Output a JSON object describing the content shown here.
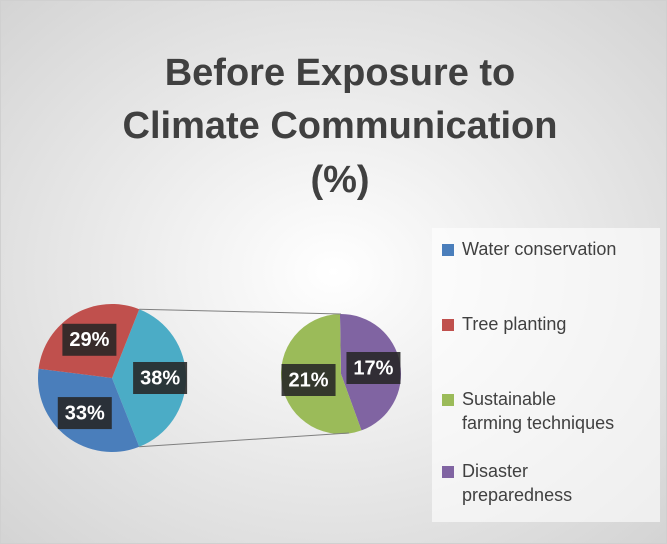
{
  "chart_data": {
    "type": "pie_of_pie",
    "title": [
      "Before Exposure to",
      "Climate Communication",
      "(%)"
    ],
    "categories": [
      "Water conservation",
      "Tree planting",
      "Sustainable farming techniques",
      "Disaster preparedness"
    ],
    "values": [
      33,
      29,
      21,
      17
    ],
    "value_labels": [
      "33%",
      "29%",
      "21%",
      "17%"
    ],
    "colors": [
      "#4a7ebb",
      "#c0504d",
      "#9bbb59",
      "#8064a2"
    ],
    "other_value": 38,
    "other_label": "38%",
    "other_color": "#4bacc6"
  }
}
